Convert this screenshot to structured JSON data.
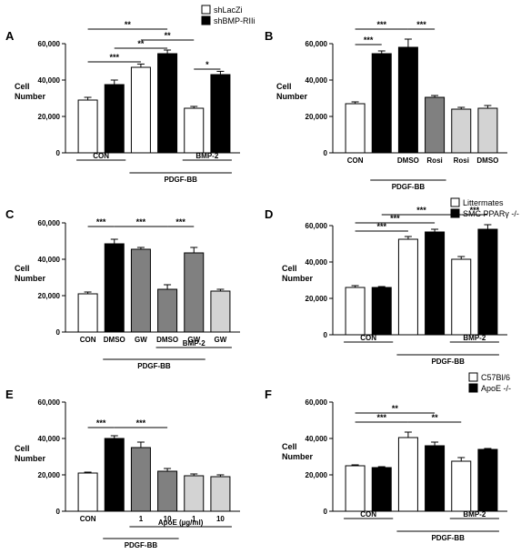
{
  "figure": {
    "colors": {
      "white": "#ffffff",
      "black": "#000000",
      "dark_gray": "#808080",
      "light_gray": "#d3d3d3"
    }
  },
  "chart_data": [
    {
      "panel": "A",
      "type": "bar",
      "ylabel": "Cell Number",
      "ylim": [
        0,
        60000
      ],
      "yticks": [
        "0",
        "20,000",
        "40,000",
        "60,000"
      ],
      "legend": [
        {
          "label": "shLacZi",
          "color": "#ffffff"
        },
        {
          "label": "shBMP-RIIi",
          "color": "#000000"
        }
      ],
      "bars": [
        {
          "value": 29000,
          "err": 1500,
          "color": "#ffffff"
        },
        {
          "value": 37500,
          "err": 2500,
          "color": "#000000"
        },
        {
          "value": 47000,
          "err": 1800,
          "color": "#ffffff"
        },
        {
          "value": 54500,
          "err": 2000,
          "color": "#000000"
        },
        {
          "value": 24500,
          "err": 1000,
          "color": "#ffffff"
        },
        {
          "value": 43000,
          "err": 1800,
          "color": "#000000"
        }
      ],
      "bar_labels": [
        "",
        "",
        "",
        "",
        "",
        ""
      ],
      "groups": [
        {
          "label": "CON",
          "from": 0,
          "to": 1,
          "level": 0
        },
        {
          "label": "BMP-2",
          "from": 4,
          "to": 5,
          "level": 0
        },
        {
          "label": "PDGF-BB",
          "from": 2,
          "to": 5,
          "level": 1
        }
      ],
      "sig": [
        {
          "from": 0,
          "to": 3,
          "y": 68000,
          "label": "**"
        },
        {
          "from": 2,
          "to": 4,
          "y": 62000,
          "label": "**"
        },
        {
          "from": 1,
          "to": 3,
          "y": 57500,
          "label": "**"
        },
        {
          "from": 0,
          "to": 2,
          "y": 50000,
          "label": "***"
        },
        {
          "from": 4,
          "to": 5,
          "y": 46000,
          "label": "*"
        }
      ]
    },
    {
      "panel": "B",
      "type": "bar",
      "ylabel": "Cell Number",
      "ylim": [
        0,
        60000
      ],
      "yticks": [
        "0",
        "20,000",
        "40,000",
        "60,000"
      ],
      "legend": [],
      "bars": [
        {
          "value": 27000,
          "err": 1000,
          "color": "#ffffff"
        },
        {
          "value": 54500,
          "err": 1500,
          "color": "#000000"
        },
        {
          "value": 58000,
          "err": 4500,
          "color": "#000000"
        },
        {
          "value": 30500,
          "err": 1000,
          "color": "#808080"
        },
        {
          "value": 24000,
          "err": 1000,
          "color": "#d3d3d3"
        },
        {
          "value": 24500,
          "err": 1500,
          "color": "#d3d3d3"
        }
      ],
      "bar_labels": [
        "CON",
        "",
        "DMSO",
        "Rosi",
        "Rosi",
        "DMSO"
      ],
      "groups": [
        {
          "label": "PDGF-BB",
          "from": 1,
          "to": 3,
          "level": 1
        }
      ],
      "sig": [
        {
          "from": 0,
          "to": 2,
          "y": 68000,
          "label": "***"
        },
        {
          "from": 2,
          "to": 3,
          "y": 68000,
          "label": "***"
        },
        {
          "from": 0,
          "to": 1,
          "y": 59500,
          "label": "***"
        }
      ]
    },
    {
      "panel": "C",
      "type": "bar",
      "ylabel": "Cell Number",
      "ylim": [
        0,
        60000
      ],
      "yticks": [
        "0",
        "20,000",
        "40,000",
        "60,000"
      ],
      "legend": [],
      "bars": [
        {
          "value": 21000,
          "err": 1000,
          "color": "#ffffff"
        },
        {
          "value": 48500,
          "err": 2500,
          "color": "#000000"
        },
        {
          "value": 45500,
          "err": 1000,
          "color": "#808080"
        },
        {
          "value": 23500,
          "err": 2500,
          "color": "#808080"
        },
        {
          "value": 43500,
          "err": 3000,
          "color": "#808080"
        },
        {
          "value": 22500,
          "err": 1000,
          "color": "#d3d3d3"
        }
      ],
      "bar_labels": [
        "CON",
        "DMSO",
        "GW",
        "DMSO",
        "GW",
        "GW"
      ],
      "groups": [
        {
          "label": "BMP-2",
          "from": 3,
          "to": 5,
          "level": 0
        },
        {
          "label": "PDGF-BB",
          "from": 1,
          "to": 4,
          "level": 1
        }
      ],
      "sig": [
        {
          "from": 0,
          "to": 1,
          "y": 58000,
          "label": "***"
        },
        {
          "from": 1,
          "to": 3,
          "y": 58000,
          "label": "***"
        },
        {
          "from": 3,
          "to": 4,
          "y": 58000,
          "label": "***"
        }
      ]
    },
    {
      "panel": "D",
      "type": "bar",
      "ylabel": "Cell Number",
      "ylim": [
        0,
        60000
      ],
      "yticks": [
        "0",
        "20,000",
        "40,000",
        "60,000"
      ],
      "legend": [
        {
          "label": "Littermates",
          "color": "#ffffff"
        },
        {
          "label": "SMC PPARγ -/-",
          "color": "#000000"
        }
      ],
      "bars": [
        {
          "value": 26000,
          "err": 1000,
          "color": "#ffffff"
        },
        {
          "value": 26000,
          "err": 500,
          "color": "#000000"
        },
        {
          "value": 52500,
          "err": 1500,
          "color": "#ffffff"
        },
        {
          "value": 56500,
          "err": 1500,
          "color": "#000000"
        },
        {
          "value": 41500,
          "err": 1500,
          "color": "#ffffff"
        },
        {
          "value": 58000,
          "err": 2500,
          "color": "#000000"
        }
      ],
      "bar_labels": [
        "",
        "",
        "",
        "",
        "",
        ""
      ],
      "groups": [
        {
          "label": "CON",
          "from": 0,
          "to": 1,
          "level": 0
        },
        {
          "label": "BMP-2",
          "from": 4,
          "to": 5,
          "level": 0
        },
        {
          "label": "PDGF-BB",
          "from": 2,
          "to": 5,
          "level": 1
        }
      ],
      "sig": [
        {
          "from": 1,
          "to": 4,
          "y": 66000,
          "label": "***"
        },
        {
          "from": 0,
          "to": 3,
          "y": 61500,
          "label": "***"
        },
        {
          "from": 0,
          "to": 2,
          "y": 57000,
          "label": "***"
        },
        {
          "from": 4,
          "to": 5,
          "y": 66000,
          "label": "***"
        }
      ]
    },
    {
      "panel": "E",
      "type": "bar",
      "ylabel": "Cell Number",
      "ylim": [
        0,
        60000
      ],
      "yticks": [
        "0",
        "20,000",
        "40,000",
        "60,000"
      ],
      "legend": [],
      "bars": [
        {
          "value": 21000,
          "err": 500,
          "color": "#ffffff"
        },
        {
          "value": 40000,
          "err": 1500,
          "color": "#000000"
        },
        {
          "value": 35000,
          "err": 3000,
          "color": "#808080"
        },
        {
          "value": 22000,
          "err": 1500,
          "color": "#808080"
        },
        {
          "value": 19500,
          "err": 1000,
          "color": "#d3d3d3"
        },
        {
          "value": 19000,
          "err": 1000,
          "color": "#d3d3d3"
        }
      ],
      "bar_labels": [
        "CON",
        "",
        "1",
        "10",
        "1",
        "10"
      ],
      "groups": [
        {
          "label": "ApoE (µg/ml)",
          "from": 2,
          "to": 5,
          "level": 0
        },
        {
          "label": "PDGF-BB",
          "from": 1,
          "to": 3,
          "level": 1
        }
      ],
      "sig": [
        {
          "from": 0,
          "to": 1,
          "y": 46000,
          "label": "***"
        },
        {
          "from": 1,
          "to": 3,
          "y": 46000,
          "label": "***"
        }
      ]
    },
    {
      "panel": "F",
      "type": "bar",
      "ylabel": "Cell Number",
      "ylim": [
        0,
        60000
      ],
      "yticks": [
        "0",
        "20,000",
        "40,000",
        "60,000"
      ],
      "legend": [
        {
          "label": "C57Bl/6",
          "color": "#ffffff"
        },
        {
          "label": "ApoE -/-",
          "color": "#000000"
        }
      ],
      "bars": [
        {
          "value": 25000,
          "err": 500,
          "color": "#ffffff"
        },
        {
          "value": 24000,
          "err": 500,
          "color": "#000000"
        },
        {
          "value": 40500,
          "err": 3000,
          "color": "#ffffff"
        },
        {
          "value": 36000,
          "err": 2000,
          "color": "#000000"
        },
        {
          "value": 27500,
          "err": 2000,
          "color": "#ffffff"
        },
        {
          "value": 34000,
          "err": 500,
          "color": "#000000"
        }
      ],
      "bar_labels": [
        "",
        "",
        "",
        "",
        "",
        ""
      ],
      "groups": [
        {
          "label": "CON",
          "from": 0,
          "to": 1,
          "level": 0
        },
        {
          "label": "BMP-2",
          "from": 4,
          "to": 5,
          "level": 0
        },
        {
          "label": "PDGF-BB",
          "from": 2,
          "to": 5,
          "level": 1
        }
      ],
      "sig": [
        {
          "from": 0,
          "to": 3,
          "y": 54000,
          "label": "**"
        },
        {
          "from": 0,
          "to": 2,
          "y": 49000,
          "label": "***"
        },
        {
          "from": 2,
          "to": 4,
          "y": 49000,
          "label": "**"
        }
      ]
    }
  ]
}
